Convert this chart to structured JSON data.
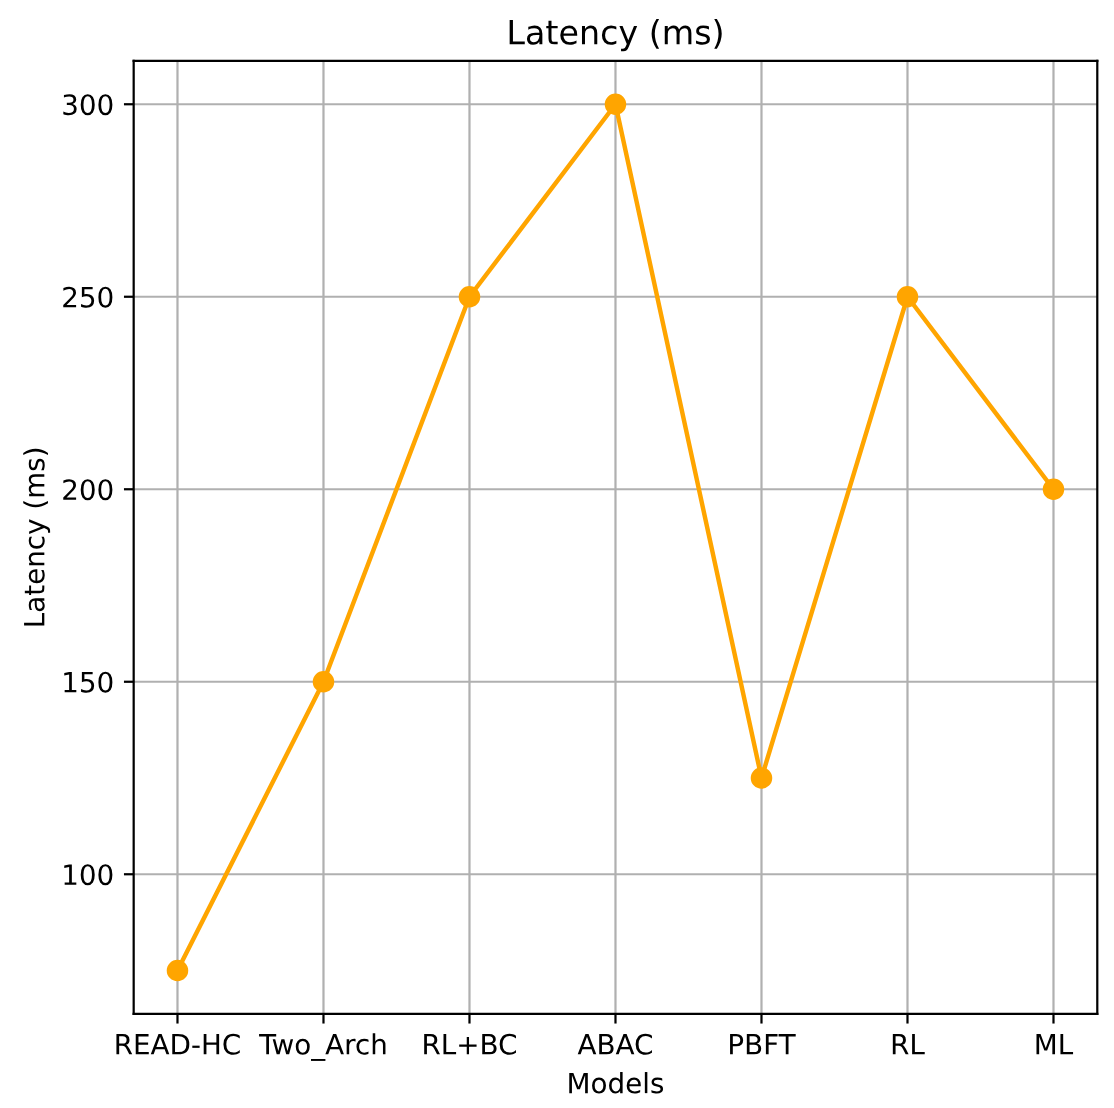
{
  "chart_data": {
    "type": "line",
    "title": "Latency (ms)",
    "xlabel": "Models",
    "ylabel": "Latency (ms)",
    "categories": [
      "READ-HC",
      "Two_Arch",
      "RL+BC",
      "ABAC",
      "PBFT",
      "RL",
      "ML"
    ],
    "series": [
      {
        "color": "#ffa500",
        "values": [
          75,
          150,
          250,
          300,
          125,
          250,
          200
        ]
      }
    ],
    "ylim": [
      63.75,
      311.25
    ],
    "yticks": [
      100,
      150,
      200,
      250,
      300
    ],
    "grid": true,
    "marker": "circle",
    "line_style": "solid"
  }
}
